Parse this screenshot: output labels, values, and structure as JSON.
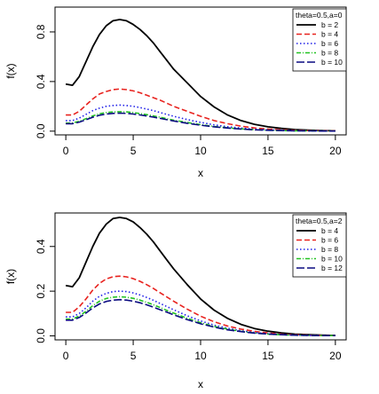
{
  "chart_data": [
    {
      "type": "line",
      "xlabel": "x",
      "ylabel": "f(x)",
      "xlim": [
        -0.8,
        20.8
      ],
      "ylim": [
        -0.03,
        1.0
      ],
      "x_ticks": [
        "0",
        "5",
        "10",
        "15",
        "20"
      ],
      "y_ticks": [
        "0.0",
        "0.4",
        "0.8"
      ],
      "legend_title": "theta=0.5,a=0",
      "legend_position": "top-right",
      "x": [
        0,
        0.5,
        1,
        1.5,
        2,
        2.5,
        3,
        3.5,
        4,
        4.5,
        5,
        5.5,
        6,
        6.5,
        7,
        7.5,
        8,
        9,
        10,
        11,
        12,
        13,
        14,
        15,
        16,
        17,
        18,
        19,
        20
      ],
      "series": [
        {
          "name": "b = 2",
          "color": "#000000",
          "dash": "solid",
          "values": [
            0.38,
            0.37,
            0.44,
            0.56,
            0.68,
            0.78,
            0.85,
            0.89,
            0.9,
            0.89,
            0.86,
            0.82,
            0.77,
            0.71,
            0.64,
            0.57,
            0.5,
            0.39,
            0.28,
            0.195,
            0.13,
            0.085,
            0.055,
            0.035,
            0.022,
            0.013,
            0.008,
            0.005,
            0.003
          ]
        },
        {
          "name": "b = 4",
          "color": "#e8231f",
          "dash": "dashed",
          "values": [
            0.13,
            0.13,
            0.16,
            0.21,
            0.26,
            0.3,
            0.32,
            0.335,
            0.34,
            0.335,
            0.325,
            0.31,
            0.29,
            0.27,
            0.25,
            0.225,
            0.2,
            0.16,
            0.12,
            0.085,
            0.06,
            0.04,
            0.026,
            0.017,
            0.011,
            0.007,
            0.004,
            0.003,
            0.002
          ]
        },
        {
          "name": "b = 6",
          "color": "#1f1fe8",
          "dash": "dotted",
          "values": [
            0.085,
            0.085,
            0.105,
            0.135,
            0.165,
            0.185,
            0.2,
            0.207,
            0.21,
            0.207,
            0.2,
            0.19,
            0.178,
            0.165,
            0.15,
            0.135,
            0.12,
            0.094,
            0.071,
            0.051,
            0.036,
            0.025,
            0.016,
            0.01,
            0.007,
            0.004,
            0.003,
            0.002,
            0.001
          ]
        },
        {
          "name": "b = 8",
          "color": "#22c322",
          "dash": "dashdot",
          "values": [
            0.065,
            0.066,
            0.08,
            0.1,
            0.123,
            0.14,
            0.15,
            0.155,
            0.157,
            0.155,
            0.15,
            0.142,
            0.133,
            0.123,
            0.112,
            0.1,
            0.089,
            0.07,
            0.052,
            0.038,
            0.027,
            0.018,
            0.012,
            0.008,
            0.005,
            0.003,
            0.002,
            0.001,
            0.001
          ]
        },
        {
          "name": "b = 10",
          "color": "#0a0a80",
          "dash": "longdash",
          "values": [
            0.06,
            0.06,
            0.073,
            0.092,
            0.112,
            0.128,
            0.138,
            0.143,
            0.145,
            0.143,
            0.138,
            0.131,
            0.122,
            0.113,
            0.103,
            0.092,
            0.082,
            0.064,
            0.048,
            0.035,
            0.025,
            0.017,
            0.011,
            0.007,
            0.005,
            0.003,
            0.002,
            0.001,
            0.001
          ]
        }
      ]
    },
    {
      "type": "line",
      "xlabel": "x",
      "ylabel": "f(x)",
      "xlim": [
        -0.8,
        20.8
      ],
      "ylim": [
        -0.018,
        0.55
      ],
      "x_ticks": [
        "0",
        "5",
        "10",
        "15",
        "20"
      ],
      "y_ticks": [
        "0.0",
        "0.2",
        "0.4"
      ],
      "legend_title": "theta=0.5,a=2",
      "legend_position": "top-right",
      "x": [
        0,
        0.5,
        1,
        1.5,
        2,
        2.5,
        3,
        3.5,
        4,
        4.5,
        5,
        5.5,
        6,
        6.5,
        7,
        7.5,
        8,
        9,
        10,
        11,
        12,
        13,
        14,
        15,
        16,
        17,
        18,
        19,
        20
      ],
      "series": [
        {
          "name": "b = 4",
          "color": "#000000",
          "dash": "solid",
          "values": [
            0.225,
            0.22,
            0.26,
            0.33,
            0.4,
            0.46,
            0.5,
            0.525,
            0.53,
            0.525,
            0.51,
            0.485,
            0.455,
            0.42,
            0.38,
            0.34,
            0.3,
            0.23,
            0.165,
            0.115,
            0.078,
            0.051,
            0.033,
            0.021,
            0.013,
            0.008,
            0.005,
            0.003,
            0.002
          ]
        },
        {
          "name": "b = 6",
          "color": "#e8231f",
          "dash": "dashed",
          "values": [
            0.105,
            0.105,
            0.13,
            0.165,
            0.205,
            0.235,
            0.255,
            0.265,
            0.267,
            0.264,
            0.256,
            0.244,
            0.229,
            0.212,
            0.193,
            0.174,
            0.155,
            0.12,
            0.088,
            0.063,
            0.044,
            0.03,
            0.02,
            0.013,
            0.008,
            0.005,
            0.003,
            0.002,
            0.001
          ]
        },
        {
          "name": "b = 8",
          "color": "#1f1fe8",
          "dash": "dotted",
          "values": [
            0.085,
            0.085,
            0.1,
            0.125,
            0.155,
            0.177,
            0.19,
            0.198,
            0.2,
            0.198,
            0.192,
            0.183,
            0.172,
            0.159,
            0.145,
            0.131,
            0.117,
            0.09,
            0.067,
            0.048,
            0.034,
            0.023,
            0.015,
            0.01,
            0.006,
            0.004,
            0.002,
            0.001,
            0.001
          ]
        },
        {
          "name": "b = 10",
          "color": "#22c322",
          "dash": "dashdot",
          "values": [
            0.075,
            0.075,
            0.089,
            0.11,
            0.135,
            0.155,
            0.167,
            0.173,
            0.175,
            0.173,
            0.168,
            0.16,
            0.15,
            0.139,
            0.127,
            0.114,
            0.102,
            0.079,
            0.059,
            0.042,
            0.03,
            0.02,
            0.013,
            0.008,
            0.005,
            0.003,
            0.002,
            0.001,
            0.001
          ]
        },
        {
          "name": "b = 12",
          "color": "#0a0a80",
          "dash": "longdash",
          "values": [
            0.07,
            0.07,
            0.082,
            0.102,
            0.125,
            0.143,
            0.154,
            0.16,
            0.162,
            0.16,
            0.155,
            0.148,
            0.139,
            0.128,
            0.117,
            0.106,
            0.094,
            0.073,
            0.054,
            0.039,
            0.027,
            0.019,
            0.012,
            0.008,
            0.005,
            0.003,
            0.002,
            0.001,
            0.001
          ]
        }
      ]
    }
  ]
}
